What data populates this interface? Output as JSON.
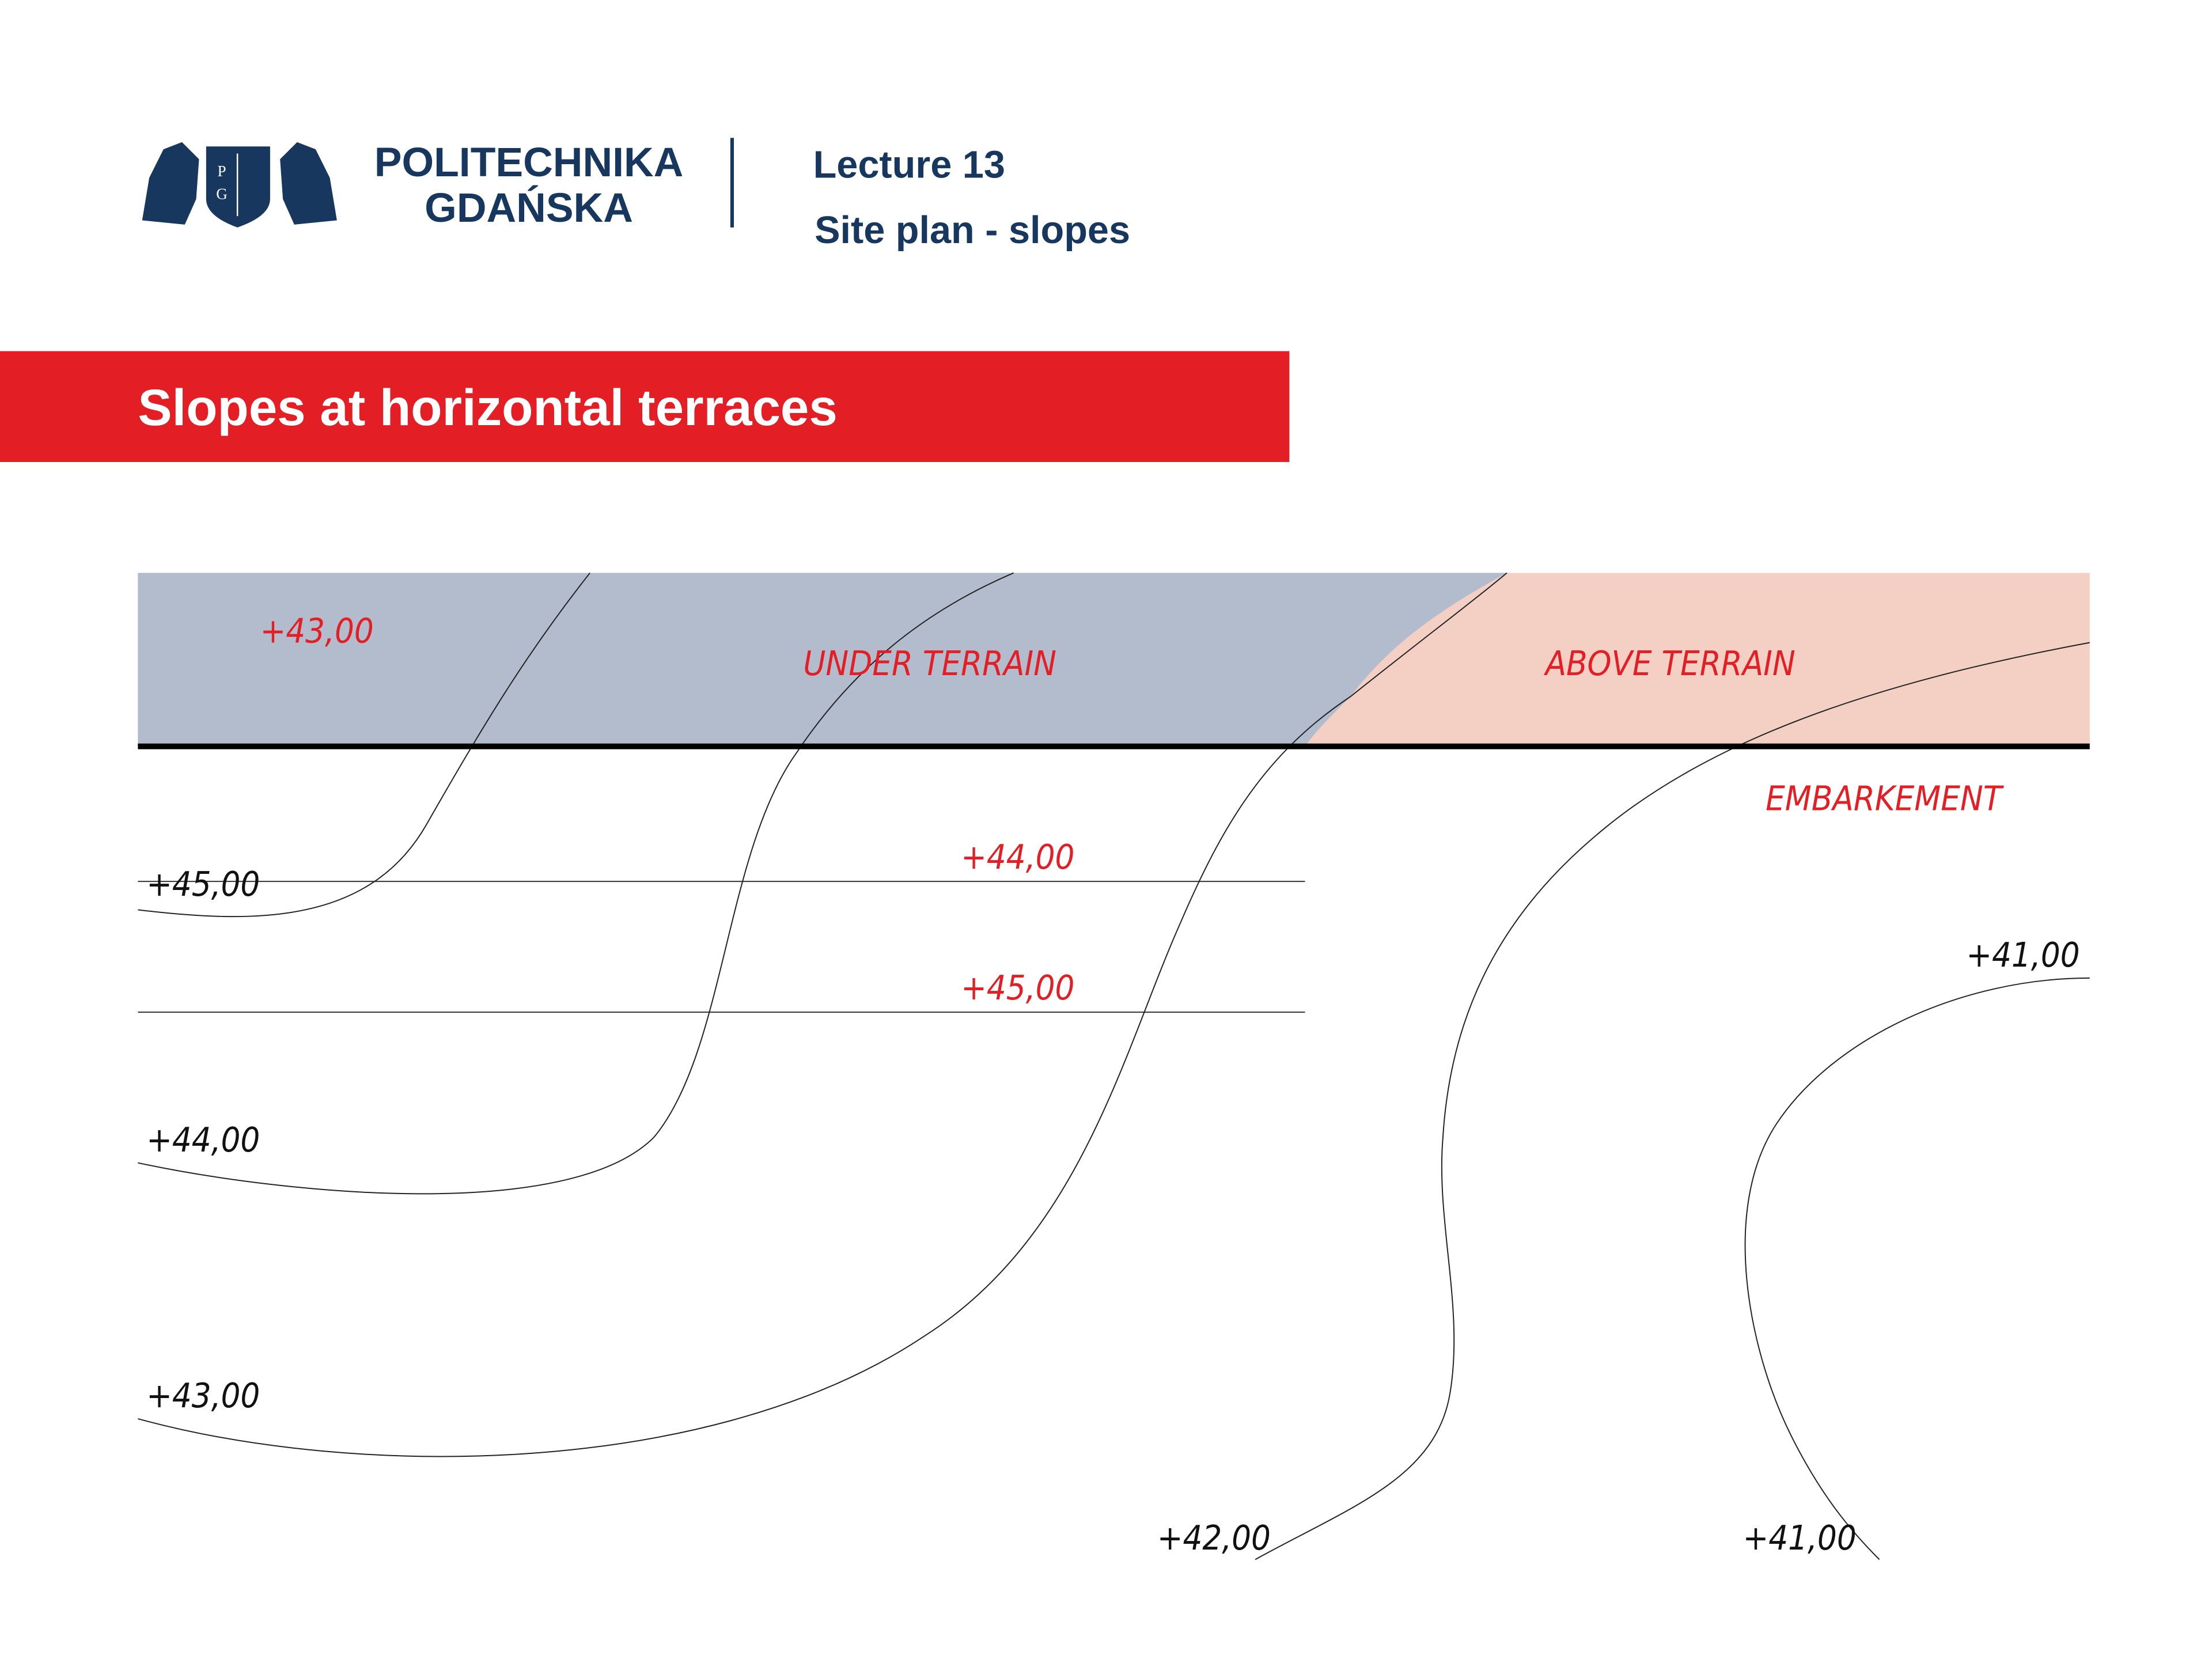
{
  "header": {
    "logo_mark": [
      "P",
      "G"
    ],
    "logo_text": [
      "POLITECHNIKA",
      "GDAŃSKA"
    ],
    "lecture": "Lecture 13",
    "subtitle": "Site plan - slopes"
  },
  "section_title": "Slopes at horizontal terraces",
  "diagram": {
    "region_labels": [
      "UNDER TERRAIN",
      "ABOVE TERRAIN",
      "EMBARKEMENT"
    ],
    "terrace_labels": [
      "+43,00",
      "+44,00",
      "+45,00"
    ],
    "contour_labels": [
      "+45,00",
      "+44,00",
      "+43,00",
      "+42,00",
      "+41,00",
      "+41,00"
    ]
  }
}
